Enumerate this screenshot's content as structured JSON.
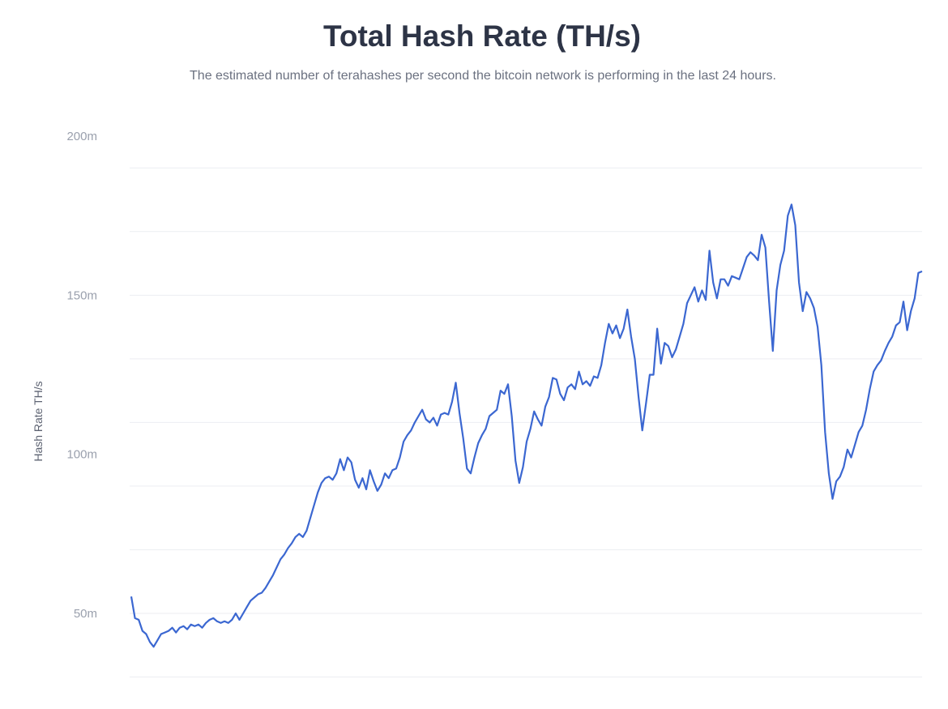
{
  "chart_data": {
    "type": "line",
    "title": "Total Hash Rate (TH/s)",
    "subtitle": "The estimated number of terahashes per second the bitcoin network is performing in the last 24 hours.",
    "xlabel": "",
    "ylabel": "Hash Rate TH/s",
    "ylim": [
      30000000,
      205000000
    ],
    "yticks": [
      50000000,
      100000000,
      150000000,
      200000000
    ],
    "ytick_labels": [
      "50m",
      "100m",
      "150m",
      "200m"
    ],
    "grid": true,
    "legend": "none",
    "color": "#3b67d1",
    "series": [
      {
        "points": [
          [
            0,
            55.3
          ],
          [
            2,
            48.5
          ],
          [
            4,
            48.0
          ],
          [
            6,
            44.5
          ],
          [
            8,
            43.5
          ],
          [
            10,
            41.0
          ],
          [
            12,
            39.5
          ],
          [
            14,
            41.5
          ],
          [
            16,
            43.5
          ],
          [
            18,
            44.0
          ],
          [
            20,
            44.5
          ],
          [
            22,
            45.5
          ],
          [
            24,
            44.0
          ],
          [
            26,
            45.5
          ],
          [
            28,
            46.0
          ],
          [
            30,
            45.0
          ],
          [
            32,
            46.5
          ],
          [
            34,
            46.0
          ],
          [
            36,
            46.5
          ],
          [
            38,
            45.5
          ],
          [
            40,
            47.0
          ],
          [
            42,
            48.0
          ],
          [
            44,
            48.5
          ],
          [
            46,
            47.5
          ],
          [
            48,
            47.0
          ],
          [
            50,
            47.5
          ],
          [
            52,
            47.0
          ],
          [
            54,
            48.0
          ],
          [
            56,
            50.0
          ],
          [
            58,
            48.0
          ],
          [
            60,
            50.0
          ],
          [
            62,
            52.0
          ],
          [
            64,
            54.0
          ],
          [
            66,
            55.0
          ],
          [
            68,
            56.0
          ],
          [
            70,
            56.5
          ],
          [
            72,
            58.0
          ],
          [
            74,
            60.0
          ],
          [
            76,
            62.0
          ],
          [
            78,
            64.5
          ],
          [
            80,
            67.0
          ],
          [
            82,
            68.5
          ],
          [
            84,
            70.5
          ],
          [
            86,
            72.0
          ],
          [
            88,
            74.0
          ],
          [
            90,
            75.0
          ],
          [
            92,
            74.0
          ],
          [
            94,
            76.0
          ],
          [
            96,
            80.0
          ],
          [
            98,
            84.0
          ],
          [
            100,
            88.0
          ],
          [
            102,
            91.0
          ],
          [
            104,
            92.5
          ],
          [
            106,
            93.0
          ],
          [
            108,
            92.0
          ],
          [
            110,
            94.0
          ],
          [
            112,
            98.5
          ],
          [
            114,
            95.0
          ],
          [
            116,
            99.0
          ],
          [
            118,
            97.5
          ],
          [
            120,
            92.0
          ],
          [
            122,
            89.5
          ],
          [
            124,
            92.5
          ],
          [
            126,
            89.0
          ],
          [
            128,
            95.0
          ],
          [
            130,
            91.5
          ],
          [
            132,
            88.5
          ],
          [
            134,
            90.5
          ],
          [
            136,
            94.0
          ],
          [
            138,
            92.5
          ],
          [
            140,
            95.0
          ],
          [
            142,
            95.5
          ],
          [
            144,
            99.0
          ],
          [
            146,
            104.0
          ],
          [
            148,
            106.0
          ],
          [
            150,
            107.5
          ],
          [
            152,
            110.0
          ],
          [
            154,
            112.0
          ],
          [
            156,
            114.0
          ],
          [
            158,
            111.0
          ],
          [
            160,
            110.0
          ],
          [
            162,
            111.5
          ],
          [
            164,
            109.0
          ],
          [
            166,
            112.5
          ],
          [
            168,
            113.0
          ],
          [
            170,
            112.5
          ],
          [
            172,
            116.5
          ],
          [
            174,
            122.5
          ],
          [
            176,
            113.0
          ],
          [
            178,
            105.0
          ],
          [
            180,
            95.5
          ],
          [
            182,
            94.0
          ],
          [
            184,
            99.0
          ],
          [
            186,
            103.5
          ],
          [
            188,
            106.0
          ],
          [
            190,
            108.0
          ],
          [
            192,
            112.0
          ],
          [
            194,
            113.0
          ],
          [
            196,
            114.0
          ],
          [
            198,
            120.0
          ],
          [
            200,
            119.0
          ],
          [
            202,
            122.0
          ],
          [
            204,
            112.0
          ],
          [
            206,
            98.0
          ],
          [
            208,
            91.0
          ],
          [
            210,
            96.0
          ],
          [
            212,
            104.0
          ],
          [
            214,
            108.0
          ],
          [
            216,
            113.5
          ],
          [
            218,
            111.0
          ],
          [
            220,
            109.0
          ],
          [
            222,
            115.0
          ],
          [
            224,
            118.0
          ],
          [
            226,
            124.0
          ],
          [
            228,
            123.5
          ],
          [
            230,
            119.0
          ],
          [
            232,
            117.0
          ],
          [
            234,
            121.0
          ],
          [
            236,
            122.0
          ],
          [
            238,
            120.5
          ],
          [
            240,
            126.0
          ],
          [
            242,
            122.0
          ],
          [
            244,
            123.0
          ],
          [
            246,
            121.5
          ],
          [
            248,
            124.5
          ],
          [
            250,
            124.0
          ],
          [
            252,
            128.0
          ],
          [
            254,
            135.0
          ],
          [
            256,
            141.0
          ],
          [
            258,
            138.0
          ],
          [
            260,
            140.5
          ],
          [
            262,
            136.5
          ],
          [
            264,
            139.5
          ],
          [
            266,
            145.5
          ],
          [
            268,
            137.0
          ],
          [
            270,
            130.0
          ],
          [
            272,
            118.0
          ],
          [
            274,
            107.5
          ],
          [
            276,
            116.0
          ],
          [
            278,
            125.0
          ],
          [
            280,
            125.0
          ],
          [
            282,
            139.5
          ],
          [
            284,
            128.5
          ],
          [
            286,
            135.0
          ],
          [
            288,
            134.0
          ],
          [
            290,
            130.5
          ],
          [
            292,
            133.0
          ],
          [
            294,
            137.0
          ],
          [
            296,
            141.0
          ],
          [
            298,
            147.5
          ],
          [
            300,
            150.0
          ],
          [
            302,
            152.5
          ],
          [
            304,
            148.0
          ],
          [
            306,
            151.5
          ],
          [
            308,
            148.5
          ],
          [
            310,
            164.0
          ],
          [
            312,
            154.0
          ],
          [
            314,
            149.0
          ],
          [
            316,
            155.0
          ],
          [
            318,
            155.0
          ],
          [
            320,
            153.0
          ],
          [
            322,
            156.0
          ],
          [
            324,
            155.5
          ],
          [
            326,
            155.0
          ],
          [
            328,
            158.5
          ],
          [
            330,
            162.0
          ],
          [
            332,
            163.5
          ],
          [
            334,
            162.5
          ],
          [
            336,
            161.0
          ],
          [
            338,
            169.0
          ],
          [
            340,
            165.0
          ],
          [
            342,
            148.0
          ],
          [
            344,
            132.5
          ],
          [
            346,
            151.5
          ],
          [
            348,
            159.5
          ],
          [
            350,
            164.0
          ],
          [
            352,
            175.0
          ],
          [
            354,
            178.5
          ],
          [
            356,
            172.0
          ],
          [
            358,
            154.0
          ],
          [
            360,
            145.0
          ],
          [
            362,
            151.0
          ],
          [
            364,
            149.0
          ],
          [
            366,
            146.0
          ],
          [
            368,
            140.0
          ],
          [
            370,
            128.0
          ],
          [
            372,
            107.0
          ],
          [
            374,
            94.0
          ],
          [
            376,
            86.0
          ],
          [
            378,
            91.5
          ],
          [
            380,
            93.0
          ],
          [
            382,
            96.0
          ],
          [
            384,
            101.5
          ],
          [
            386,
            99.0
          ],
          [
            388,
            103.0
          ],
          [
            390,
            107.0
          ],
          [
            392,
            109.0
          ],
          [
            394,
            114.0
          ],
          [
            396,
            120.5
          ],
          [
            398,
            126.0
          ],
          [
            400,
            128.0
          ],
          [
            402,
            129.5
          ],
          [
            404,
            132.5
          ],
          [
            406,
            135.0
          ],
          [
            408,
            137.0
          ],
          [
            410,
            140.5
          ],
          [
            412,
            141.5
          ],
          [
            414,
            148.0
          ],
          [
            416,
            139.0
          ],
          [
            418,
            145.0
          ],
          [
            420,
            149.0
          ],
          [
            422,
            157.0
          ],
          [
            424,
            157.5
          ]
        ]
      }
    ]
  }
}
